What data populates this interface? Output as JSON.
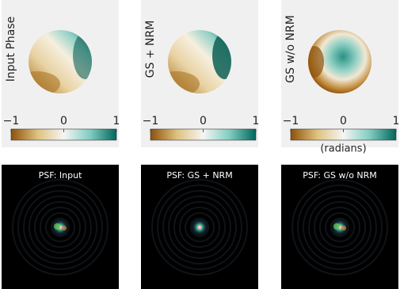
{
  "panels": [
    {
      "label": "Input Phase",
      "psf_title": "PSF: Input"
    },
    {
      "label": "GS + NRM",
      "psf_title": "PSF: GS + NRM"
    },
    {
      "label": "GS w/o NRM",
      "psf_title": "PSF: GS w/o NRM"
    }
  ],
  "colorbar": {
    "lim": [
      -1,
      1
    ],
    "ticks": [
      {
        "value": -1,
        "label": "−1"
      },
      0,
      1
    ],
    "unit": "(radians)"
  }
}
